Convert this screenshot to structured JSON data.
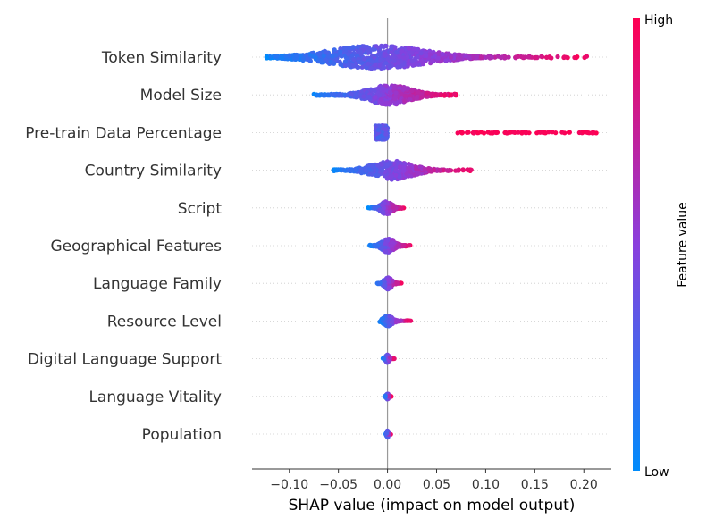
{
  "chart_data": {
    "type": "scatter",
    "subtype": "beeswarm",
    "title": "",
    "xlabel": "SHAP value (impact on model output)",
    "xlim": [
      -0.138,
      0.228
    ],
    "xticks": [
      -0.1,
      -0.05,
      0.0,
      0.05,
      0.1,
      0.15,
      0.2
    ],
    "xtick_labels": [
      "−0.10",
      "−0.05",
      "0.00",
      "0.05",
      "0.10",
      "0.15",
      "0.20"
    ],
    "grid": false,
    "colorbar": {
      "label": "Feature value",
      "high_label": "High",
      "low_label": "Low",
      "low_color": "#008bfb",
      "high_color": "#ff0052",
      "mid_color": "#8a3fdd"
    },
    "features": [
      {
        "name": "Token Similarity",
        "min": -0.123,
        "max": 0.203,
        "core": [
          -0.09,
          0.07
        ],
        "spread": 1.0,
        "skew": "right-high",
        "n": 900
      },
      {
        "name": "Model Size",
        "min": -0.075,
        "max": 0.07,
        "core": [
          -0.035,
          0.04
        ],
        "spread": 0.85,
        "skew": "right-high",
        "n": 500
      },
      {
        "name": "Pre-train Data Percentage",
        "min": -0.027,
        "max": 0.213,
        "core": [
          -0.012,
          0.0
        ],
        "spread": 0.6,
        "skew": "two-cluster",
        "n": 250
      },
      {
        "name": "Country Similarity",
        "min": -0.055,
        "max": 0.086,
        "core": [
          -0.03,
          0.04
        ],
        "spread": 0.8,
        "skew": "right-high",
        "n": 420
      },
      {
        "name": "Script",
        "min": -0.02,
        "max": 0.017,
        "core": [
          -0.01,
          0.008
        ],
        "spread": 0.55,
        "skew": "right-high",
        "n": 200
      },
      {
        "name": "Geographical Features",
        "min": -0.018,
        "max": 0.024,
        "core": [
          -0.01,
          0.012
        ],
        "spread": 0.6,
        "skew": "right-high",
        "n": 220
      },
      {
        "name": "Language Family",
        "min": -0.012,
        "max": 0.015,
        "core": [
          -0.003,
          0.004
        ],
        "spread": 0.5,
        "skew": "right-high",
        "n": 150
      },
      {
        "name": "Resource Level",
        "min": -0.008,
        "max": 0.024,
        "core": [
          -0.004,
          0.005
        ],
        "spread": 0.45,
        "skew": "right-high",
        "n": 150
      },
      {
        "name": "Digital Language Support",
        "min": -0.005,
        "max": 0.007,
        "core": [
          -0.002,
          0.002
        ],
        "spread": 0.35,
        "skew": "right-high",
        "n": 110
      },
      {
        "name": "Language Vitality",
        "min": -0.003,
        "max": 0.004,
        "core": [
          -0.002,
          0.002
        ],
        "spread": 0.3,
        "skew": "right-high",
        "n": 100
      },
      {
        "name": "Population",
        "min": -0.002,
        "max": 0.004,
        "core": [
          -0.001,
          0.001
        ],
        "spread": 0.3,
        "skew": "right-high",
        "n": 100
      }
    ]
  }
}
